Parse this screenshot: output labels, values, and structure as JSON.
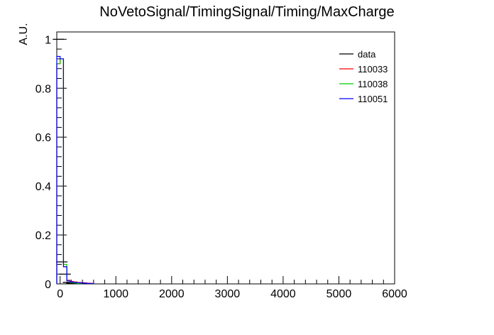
{
  "chart_data": {
    "type": "histogram",
    "title": "NoVetoSignal/TimingSignal/Timing/MaxCharge",
    "xlabel": "",
    "ylabel": "A.U.",
    "xlim": [
      -60,
      6000
    ],
    "ylim": [
      0,
      1.03
    ],
    "x_ticks": [
      0,
      1000,
      2000,
      3000,
      4000,
      5000,
      6000
    ],
    "x_tick_labels": [
      "0",
      "1000",
      "2000",
      "3000",
      "4000",
      "5000",
      "6000"
    ],
    "y_ticks": [
      0,
      0.2,
      0.4,
      0.6,
      0.8,
      1
    ],
    "y_tick_labels": [
      "0",
      "0.2",
      "0.4",
      "0.6",
      "0.8",
      "1"
    ],
    "grid": false,
    "legend_position": "top-right",
    "series": [
      {
        "name": "data",
        "color": "#000000",
        "style": "markers",
        "points": [
          {
            "x": -30,
            "y": 1.0
          },
          {
            "x": 30,
            "y": 0.09
          },
          {
            "x": 90,
            "y": 0.04
          },
          {
            "x": 150,
            "y": 0.006
          },
          {
            "x": 210,
            "y": 0.003
          }
        ]
      },
      {
        "name": "110033",
        "color": "#ff0000",
        "style": "step",
        "bin_edges": [
          -60,
          0,
          60,
          120,
          180,
          240,
          300,
          360,
          420,
          480,
          540,
          600
        ],
        "values": [
          0.9,
          0.92,
          0.07,
          0.015,
          0.01,
          0.008,
          0.006,
          0.005,
          0.004,
          0.003,
          0.002
        ]
      },
      {
        "name": "110038",
        "color": "#00cc00",
        "style": "step",
        "bin_edges": [
          -60,
          0,
          60,
          120,
          180,
          240,
          300,
          360
        ],
        "values": [
          0.9,
          0.92,
          0.08,
          0.012,
          0.006,
          0.004,
          0.002
        ]
      },
      {
        "name": "110051",
        "color": "#0000ff",
        "style": "step",
        "bin_edges": [
          -60,
          0,
          60,
          120,
          180,
          240,
          300,
          360,
          420,
          480,
          540,
          600
        ],
        "values": [
          0.93,
          0.92,
          0.07,
          0.012,
          0.008,
          0.006,
          0.005,
          0.004,
          0.003,
          0.002,
          0.002
        ]
      }
    ]
  }
}
